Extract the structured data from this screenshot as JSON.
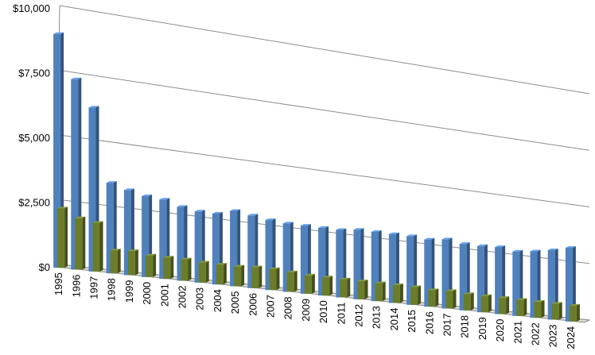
{
  "chart_data": {
    "type": "bar",
    "variant": "3d-clustered-column",
    "categories": [
      "1995",
      "1996",
      "1997",
      "1998",
      "1999",
      "2000",
      "2001",
      "2002",
      "2003",
      "2004",
      "2005",
      "2006",
      "2007",
      "2008",
      "2009",
      "2010",
      "2011",
      "2012",
      "2013",
      "2014",
      "2015",
      "2016",
      "2017",
      "2018",
      "2019",
      "2020",
      "2021",
      "2022",
      "2023",
      "2024"
    ],
    "series": [
      {
        "color": "#4f81bd",
        "values": [
          9050,
          7400,
          6400,
          3550,
          3350,
          3200,
          3150,
          2950,
          2850,
          2850,
          3050,
          2950,
          2850,
          2800,
          2800,
          2800,
          2800,
          2900,
          2900,
          2900,
          2900,
          2850,
          2950,
          2850,
          2850,
          2900,
          2800,
          2900,
          3050,
          3250
        ]
      },
      {
        "color": "#6b7d2a",
        "values": [
          2300,
          2000,
          1900,
          900,
          950,
          850,
          850,
          850,
          800,
          800,
          800,
          850,
          850,
          800,
          750,
          750,
          750,
          750,
          750,
          750,
          750,
          700,
          750,
          700,
          700,
          700,
          700,
          700,
          700,
          700
        ]
      }
    ],
    "y_tick_labels": [
      "$0",
      "$2,500",
      "$5,000",
      "$7,500",
      "$10,000"
    ],
    "y_ticks": [
      0,
      2500,
      5000,
      7500,
      10000
    ],
    "ylim": [
      0,
      10000
    ],
    "grid": true,
    "legend": "none"
  }
}
